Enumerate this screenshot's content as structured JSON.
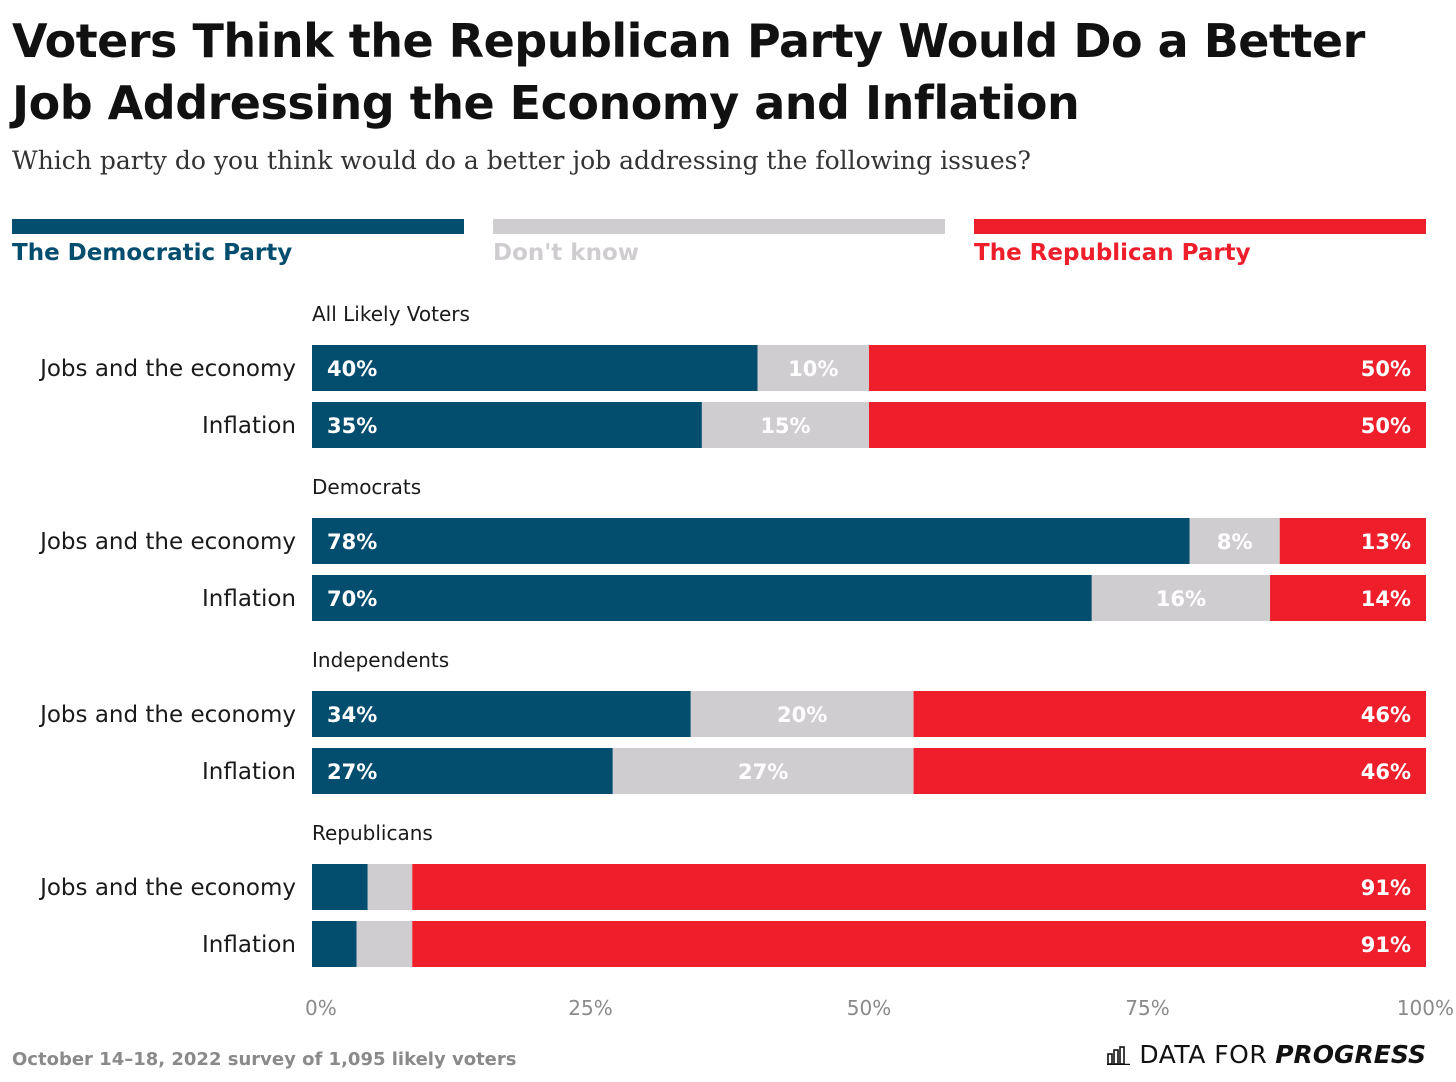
{
  "title": "Voters Think the Republican Party Would Do a Better Job Addressing the Economy and Inflation",
  "subtitle": "Which party do you think would do a better job addressing the following issues?",
  "legend": [
    {
      "label": "The Democratic Party",
      "color": "#034d6e"
    },
    {
      "label": "Don't know",
      "color": "#d0cdd1"
    },
    {
      "label": "The Republican Party",
      "color": "#ee1f2b"
    }
  ],
  "footer": {
    "note": "October 14–18, 2022 survey of 1,095 likely voters",
    "brand_part1": "DATA FOR",
    "brand_part2": "PROGRESS"
  },
  "chart_data": {
    "type": "bar",
    "orientation": "horizontal",
    "stacked": true,
    "xlim": [
      0,
      100
    ],
    "x_ticks": [
      "0%",
      "25%",
      "50%",
      "75%",
      "100%"
    ],
    "series": [
      {
        "name": "The Democratic Party",
        "color": "#034d6e"
      },
      {
        "name": "Don't know",
        "color": "#d0cdd1"
      },
      {
        "name": "The Republican Party",
        "color": "#ee1f2b"
      }
    ],
    "groups": [
      {
        "name": "All Likely Voters",
        "rows": [
          {
            "label": "Jobs and the economy",
            "values": [
              40,
              10,
              50
            ],
            "labels": [
              "40%",
              "10%",
              "50%"
            ]
          },
          {
            "label": "Inflation",
            "values": [
              35,
              15,
              50
            ],
            "labels": [
              "35%",
              "15%",
              "50%"
            ]
          }
        ]
      },
      {
        "name": "Democrats",
        "rows": [
          {
            "label": "Jobs and the economy",
            "values": [
              78,
              8,
              13
            ],
            "labels": [
              "78%",
              "8%",
              "13%"
            ]
          },
          {
            "label": "Inflation",
            "values": [
              70,
              16,
              14
            ],
            "labels": [
              "70%",
              "16%",
              "14%"
            ]
          }
        ]
      },
      {
        "name": "Independents",
        "rows": [
          {
            "label": "Jobs and the economy",
            "values": [
              34,
              20,
              46
            ],
            "labels": [
              "34%",
              "20%",
              "46%"
            ]
          },
          {
            "label": "Inflation",
            "values": [
              27,
              27,
              46
            ],
            "labels": [
              "27%",
              "27%",
              "46%"
            ]
          }
        ]
      },
      {
        "name": "Republicans",
        "rows": [
          {
            "label": "Jobs and the economy",
            "values": [
              5,
              4,
              91
            ],
            "labels": [
              "",
              "",
              "91%"
            ]
          },
          {
            "label": "Inflation",
            "values": [
              4,
              5,
              91
            ],
            "labels": [
              "",
              "",
              "91%"
            ]
          }
        ]
      }
    ]
  }
}
